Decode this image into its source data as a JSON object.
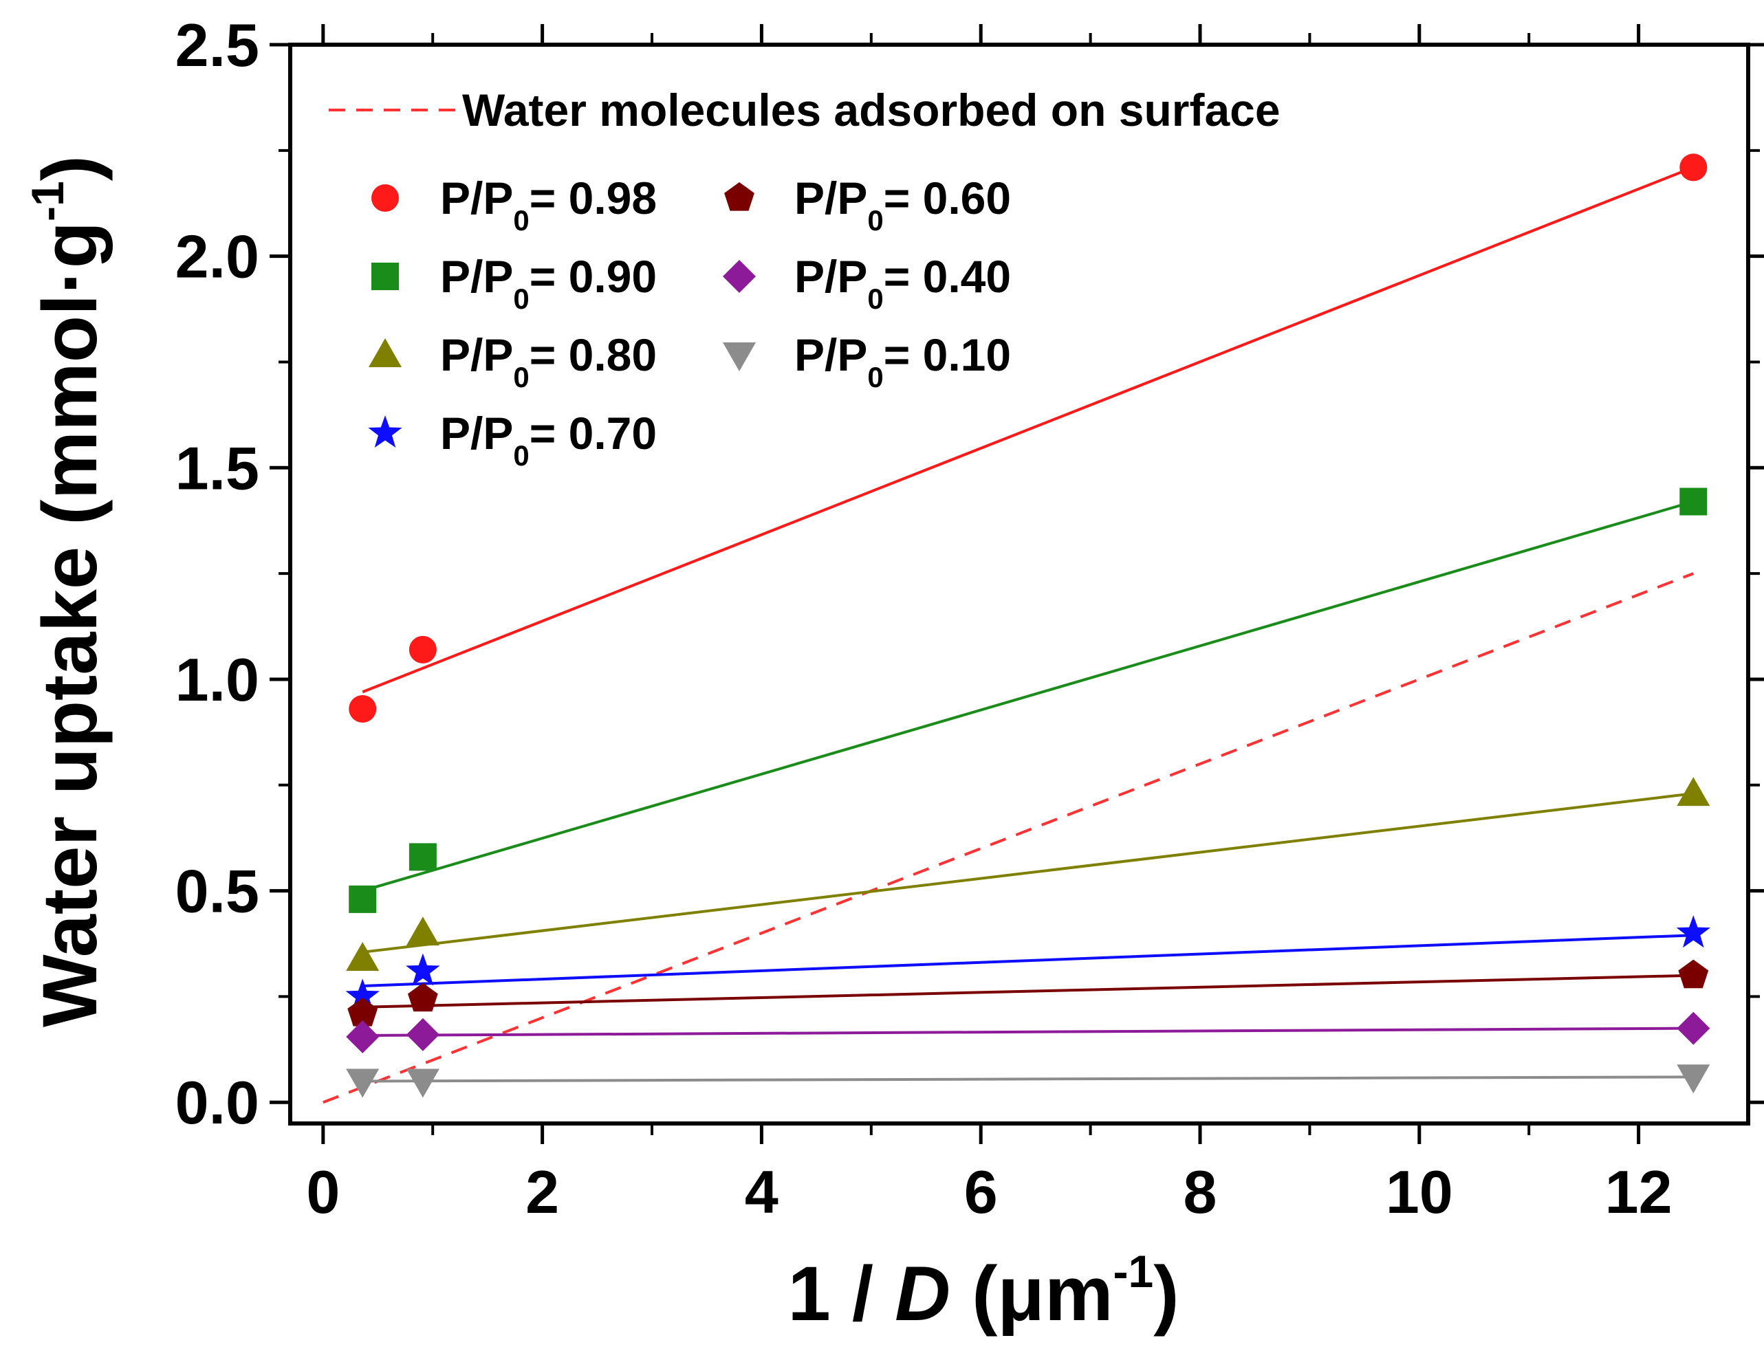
{
  "chart_data": {
    "type": "scatter",
    "title": "",
    "xlabel": "1 / D (μm-1)",
    "xlabel_parts": {
      "prefix": "1 / ",
      "italic": "D",
      "unit_open": " (μm",
      "unit_exp": "-1",
      "unit_close": ")"
    },
    "ylabel": "Water uptake (mmol·g-1)",
    "ylabel_parts": {
      "main": "Water uptake (mmol·g",
      "exp": "-1",
      "close": ")"
    },
    "xlim": [
      -0.3,
      13.0
    ],
    "ylim": [
      -0.05,
      2.5
    ],
    "x_ticks": [
      0,
      2,
      4,
      6,
      8,
      10,
      12
    ],
    "x_tick_labels": [
      "0",
      "2",
      "4",
      "6",
      "8",
      "10",
      "12"
    ],
    "x_minor_ticks": [
      1,
      3,
      5,
      7,
      9,
      11
    ],
    "y_ticks": [
      0.0,
      0.5,
      1.0,
      1.5,
      2.0,
      2.5
    ],
    "y_tick_labels": [
      "0.0",
      "0.5",
      "1.0",
      "1.5",
      "2.0",
      "2.5"
    ],
    "y_minor_ticks": [
      0.25,
      0.75,
      1.25,
      1.75,
      2.25
    ],
    "grid": false,
    "legend_position": "top-left",
    "reference_line": {
      "label": "Water molecules adsorbed on surface",
      "color": "#ff3333",
      "style": "dashed",
      "x": [
        0,
        12.5
      ],
      "y": [
        0.0,
        1.25
      ]
    },
    "series": [
      {
        "name": "P/P0= 0.98",
        "label_main": "P/P",
        "label_sub": "0",
        "label_value": "= 0.98",
        "marker": "circle",
        "color": "#ff1a1a",
        "x": [
          0.36,
          0.91,
          12.5
        ],
        "y": [
          0.93,
          1.07,
          2.21
        ],
        "fit": {
          "x": [
            0.36,
            12.5
          ],
          "y": [
            0.97,
            2.21
          ]
        }
      },
      {
        "name": "P/P0= 0.90",
        "label_main": "P/P",
        "label_sub": "0",
        "label_value": "= 0.90",
        "marker": "square",
        "color": "#1a8c1a",
        "x": [
          0.36,
          0.91,
          12.5
        ],
        "y": [
          0.48,
          0.58,
          1.42
        ],
        "fit": {
          "x": [
            0.36,
            12.5
          ],
          "y": [
            0.5,
            1.42
          ]
        }
      },
      {
        "name": "P/P0= 0.80",
        "label_main": "P/P",
        "label_sub": "0",
        "label_value": "= 0.80",
        "marker": "triangle-up",
        "color": "#808000",
        "x": [
          0.36,
          0.91,
          12.5
        ],
        "y": [
          0.34,
          0.4,
          0.73
        ],
        "fit": {
          "x": [
            0.36,
            12.5
          ],
          "y": [
            0.355,
            0.73
          ]
        }
      },
      {
        "name": "P/P0= 0.70",
        "label_main": "P/P",
        "label_sub": "0",
        "label_value": "= 0.70",
        "marker": "star",
        "color": "#0d0dff",
        "x": [
          0.36,
          0.91,
          12.5
        ],
        "y": [
          0.25,
          0.31,
          0.4
        ],
        "fit": {
          "x": [
            0.36,
            12.5
          ],
          "y": [
            0.275,
            0.395
          ]
        }
      },
      {
        "name": "P/P0= 0.60",
        "label_main": "P/P",
        "label_sub": "0",
        "label_value": "= 0.60",
        "marker": "pentagon",
        "color": "#7a0000",
        "x": [
          0.36,
          0.91,
          12.5
        ],
        "y": [
          0.21,
          0.245,
          0.3
        ],
        "fit": {
          "x": [
            0.36,
            12.5
          ],
          "y": [
            0.225,
            0.3
          ]
        }
      },
      {
        "name": "P/P0= 0.40",
        "label_main": "P/P",
        "label_sub": "0",
        "label_value": "= 0.40",
        "marker": "diamond",
        "color": "#8c1a99",
        "x": [
          0.36,
          0.91,
          12.5
        ],
        "y": [
          0.155,
          0.16,
          0.175
        ],
        "fit": {
          "x": [
            0.36,
            12.5
          ],
          "y": [
            0.158,
            0.175
          ]
        }
      },
      {
        "name": "P/P0= 0.10",
        "label_main": "P/P",
        "label_sub": "0",
        "label_value": "= 0.10",
        "marker": "triangle-down",
        "color": "#8c8c8c",
        "x": [
          0.36,
          0.91,
          12.5
        ],
        "y": [
          0.05,
          0.05,
          0.06
        ],
        "fit": {
          "x": [
            0.36,
            12.5
          ],
          "y": [
            0.05,
            0.06
          ]
        }
      }
    ]
  }
}
